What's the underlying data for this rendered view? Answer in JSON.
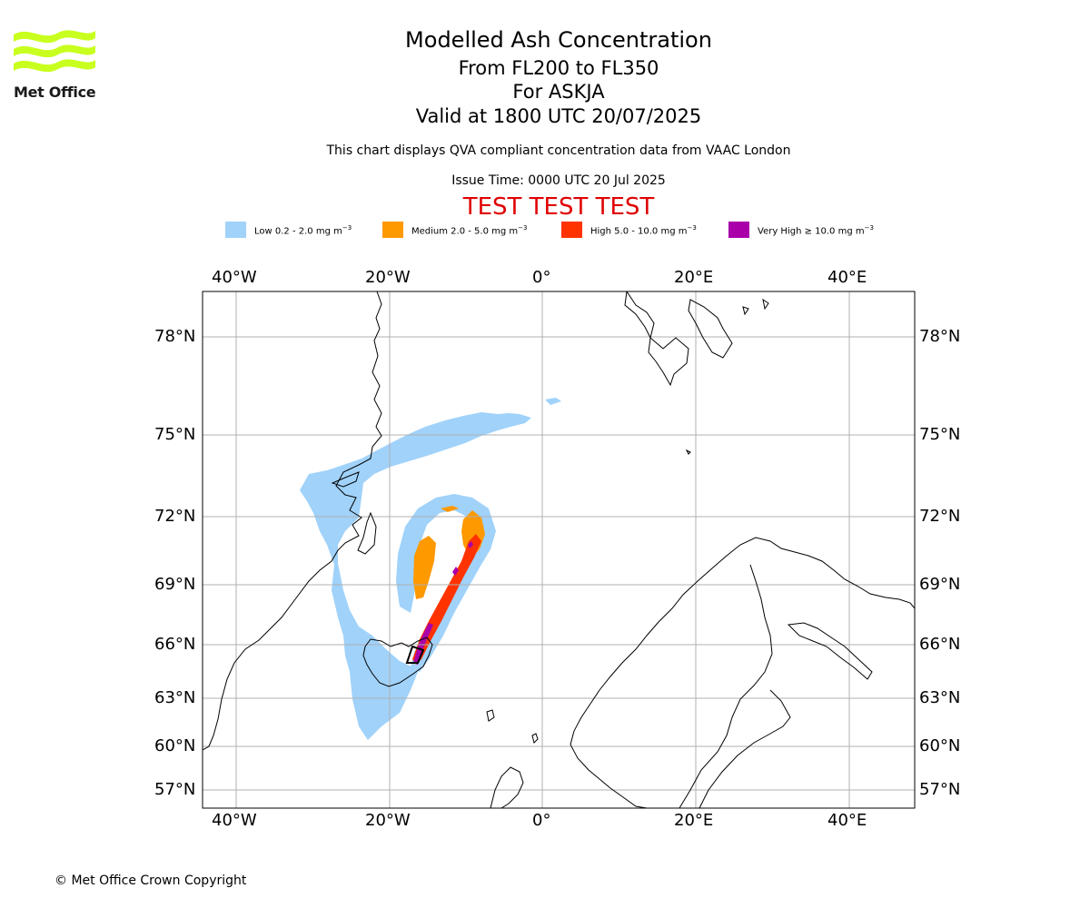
{
  "header": {
    "logo_text": "Met Office",
    "title": "Modelled Ash Concentration",
    "level_range": "From FL200 to FL350",
    "volcano": "For ASKJA",
    "valid_time": "Valid at 1800 UTC 20/07/2025",
    "subtitle": "This chart displays QVA compliant concentration data from VAAC London",
    "issue_time": "Issue Time: 0000 UTC 20 Jul 2025",
    "test_banner": "TEST TEST TEST"
  },
  "legend": [
    {
      "label": "Low 0.2 - 2.0 mg m",
      "unit_exp": "−3",
      "color": "#a0d2fa"
    },
    {
      "label": "Medium 2.0 - 5.0 mg m",
      "unit_exp": "−3",
      "color": "#ff9900"
    },
    {
      "label": "High 5.0 - 10.0 mg m",
      "unit_exp": "−3",
      "color": "#ff3300"
    },
    {
      "label": "Very High ≥ 10.0 mg m",
      "unit_exp": "−3",
      "color": "#aa00aa"
    }
  ],
  "map": {
    "longitude_labels": [
      "40°W",
      "20°W",
      "0°",
      "20°E",
      "40°E"
    ],
    "latitude_labels": [
      "78°N",
      "75°N",
      "72°N",
      "69°N",
      "66°N",
      "63°N",
      "60°N",
      "57°N"
    ],
    "gridlines": true,
    "coastline_color": "#000000",
    "grid_color": "#b0b0b0"
  },
  "footer": {
    "copyright": "© Met Office Crown Copyright"
  }
}
